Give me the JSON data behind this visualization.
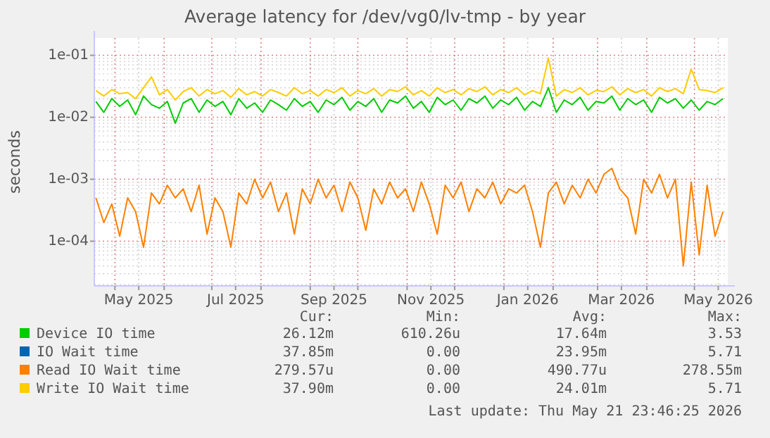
{
  "chart_data": {
    "type": "line",
    "title": "Average latency for /dev/vg0/lv-tmp - by year",
    "ylabel": "seconds",
    "log": "y",
    "grid": true,
    "legend": "bottom",
    "marker": "none",
    "line_style": "solid",
    "xlim": [
      "2025-04-18",
      "2026-05-22"
    ],
    "ylim": [
      1.9e-05,
      0.19
    ],
    "yticks": [
      {
        "value": 0.0001,
        "label": "1e-04"
      },
      {
        "value": 0.001,
        "label": "1e-03"
      },
      {
        "value": 0.01,
        "label": "1e-02"
      },
      {
        "value": 0.1,
        "label": "1e-01"
      }
    ],
    "xticks": [
      {
        "value": "2025-05-01",
        "label": null
      },
      {
        "value": "2025-05-16",
        "label": "May 2025"
      },
      {
        "value": "2025-06-01",
        "label": null
      },
      {
        "value": "2025-07-01",
        "label": null
      },
      {
        "value": "2025-07-16",
        "label": "Jul 2025"
      },
      {
        "value": "2025-08-01",
        "label": null
      },
      {
        "value": "2025-09-01",
        "label": null
      },
      {
        "value": "2025-09-16",
        "label": "Sep 2025"
      },
      {
        "value": "2025-10-01",
        "label": null
      },
      {
        "value": "2025-11-01",
        "label": null
      },
      {
        "value": "2025-11-16",
        "label": "Nov 2025"
      },
      {
        "value": "2025-12-01",
        "label": null
      },
      {
        "value": "2026-01-01",
        "label": null
      },
      {
        "value": "2026-01-16",
        "label": "Jan 2026"
      },
      {
        "value": "2026-02-01",
        "label": null
      },
      {
        "value": "2026-03-01",
        "label": null
      },
      {
        "value": "2026-03-16",
        "label": "Mar 2026"
      },
      {
        "value": "2026-04-01",
        "label": null
      },
      {
        "value": "2026-05-01",
        "label": null
      },
      {
        "value": "2026-05-16",
        "label": "May 2026"
      }
    ],
    "x": [
      "2025-04-19",
      "2025-04-24",
      "2025-04-29",
      "2025-05-04",
      "2025-05-09",
      "2025-05-14",
      "2025-05-19",
      "2025-05-24",
      "2025-05-29",
      "2025-06-03",
      "2025-06-08",
      "2025-06-13",
      "2025-06-18",
      "2025-06-23",
      "2025-06-28",
      "2025-07-03",
      "2025-07-08",
      "2025-07-13",
      "2025-07-18",
      "2025-07-23",
      "2025-07-28",
      "2025-08-02",
      "2025-08-07",
      "2025-08-12",
      "2025-08-17",
      "2025-08-22",
      "2025-08-27",
      "2025-09-01",
      "2025-09-06",
      "2025-09-11",
      "2025-09-16",
      "2025-09-21",
      "2025-09-26",
      "2025-10-01",
      "2025-10-06",
      "2025-10-11",
      "2025-10-16",
      "2025-10-21",
      "2025-10-26",
      "2025-10-31",
      "2025-11-05",
      "2025-11-10",
      "2025-11-15",
      "2025-11-20",
      "2025-11-25",
      "2025-11-30",
      "2025-12-05",
      "2025-12-10",
      "2025-12-15",
      "2025-12-20",
      "2025-12-25",
      "2025-12-30",
      "2026-01-04",
      "2026-01-09",
      "2026-01-14",
      "2026-01-19",
      "2026-01-24",
      "2026-01-29",
      "2026-02-03",
      "2026-02-08",
      "2026-02-13",
      "2026-02-18",
      "2026-02-23",
      "2026-02-28",
      "2026-03-05",
      "2026-03-10",
      "2026-03-15",
      "2026-03-20",
      "2026-03-25",
      "2026-03-30",
      "2026-04-04",
      "2026-04-09",
      "2026-04-14",
      "2026-04-19",
      "2026-04-24",
      "2026-04-29",
      "2026-05-04",
      "2026-05-09",
      "2026-05-14",
      "2026-05-19"
    ],
    "series": [
      {
        "name": "Device IO time",
        "color": "#00cc00",
        "values": [
          0.018,
          0.012,
          0.02,
          0.015,
          0.019,
          0.011,
          0.022,
          0.016,
          0.014,
          0.018,
          0.008,
          0.017,
          0.02,
          0.012,
          0.019,
          0.015,
          0.018,
          0.011,
          0.02,
          0.014,
          0.017,
          0.012,
          0.019,
          0.016,
          0.013,
          0.02,
          0.015,
          0.018,
          0.012,
          0.019,
          0.016,
          0.021,
          0.013,
          0.018,
          0.015,
          0.02,
          0.012,
          0.019,
          0.017,
          0.022,
          0.014,
          0.018,
          0.012,
          0.021,
          0.016,
          0.019,
          0.013,
          0.02,
          0.017,
          0.022,
          0.014,
          0.019,
          0.016,
          0.021,
          0.013,
          0.018,
          0.015,
          0.03,
          0.012,
          0.019,
          0.016,
          0.021,
          0.013,
          0.018,
          0.017,
          0.022,
          0.013,
          0.02,
          0.016,
          0.019,
          0.012,
          0.021,
          0.017,
          0.02,
          0.014,
          0.019,
          0.013,
          0.018,
          0.016,
          0.02
        ]
      },
      {
        "name": "IO Wait time",
        "color": "#0066b3",
        "values": [
          null,
          null,
          null,
          null,
          null,
          null,
          null,
          null,
          null,
          null,
          null,
          null,
          null,
          null,
          null,
          null,
          null,
          null,
          null,
          null,
          null,
          null,
          null,
          null,
          null,
          null,
          null,
          null,
          null,
          null,
          null,
          null,
          null,
          null,
          null,
          null,
          null,
          null,
          null,
          null,
          null,
          null,
          null,
          null,
          null,
          null,
          null,
          null,
          null,
          null,
          null,
          null,
          null,
          null,
          null,
          null,
          null,
          null,
          null,
          null,
          null,
          null,
          null,
          null,
          null,
          null,
          null,
          null,
          null,
          null,
          null,
          null,
          null,
          null,
          null,
          null,
          null,
          null,
          null,
          null
        ]
      },
      {
        "name": "Read IO Wait time",
        "color": "#ff8000",
        "values": [
          0.0005,
          0.0002,
          0.0004,
          0.00012,
          0.0005,
          0.0003,
          8e-05,
          0.0006,
          0.0004,
          0.0008,
          0.0005,
          0.0007,
          0.0003,
          0.0008,
          0.00013,
          0.0005,
          0.0003,
          8e-05,
          0.0006,
          0.0004,
          0.001,
          0.0005,
          0.0009,
          0.0003,
          0.0006,
          0.00013,
          0.0007,
          0.0004,
          0.001,
          0.0005,
          0.0008,
          0.0003,
          0.0009,
          0.0005,
          0.00015,
          0.0007,
          0.0004,
          0.0009,
          0.0005,
          0.0007,
          0.0003,
          0.0009,
          0.0004,
          0.00013,
          0.0008,
          0.0005,
          0.0009,
          0.0003,
          0.0007,
          0.0005,
          0.0009,
          0.0004,
          0.0007,
          0.0006,
          0.0008,
          0.0003,
          8e-05,
          0.0006,
          0.0009,
          0.0004,
          0.0008,
          0.0005,
          0.001,
          0.0006,
          0.0012,
          0.0015,
          0.0007,
          0.0005,
          0.00013,
          0.001,
          0.0006,
          0.0012,
          0.0005,
          0.001,
          4e-05,
          0.0009,
          6e-05,
          0.0008,
          0.00012,
          0.0003
        ]
      },
      {
        "name": "Write IO Wait time",
        "color": "#ffcc00",
        "values": [
          0.027,
          0.022,
          0.028,
          0.024,
          0.025,
          0.02,
          0.03,
          0.045,
          0.023,
          0.028,
          0.019,
          0.026,
          0.03,
          0.022,
          0.028,
          0.024,
          0.027,
          0.021,
          0.029,
          0.023,
          0.026,
          0.022,
          0.028,
          0.025,
          0.022,
          0.03,
          0.024,
          0.027,
          0.022,
          0.028,
          0.025,
          0.03,
          0.022,
          0.027,
          0.024,
          0.029,
          0.022,
          0.028,
          0.026,
          0.031,
          0.023,
          0.027,
          0.022,
          0.03,
          0.025,
          0.028,
          0.023,
          0.029,
          0.026,
          0.031,
          0.023,
          0.028,
          0.025,
          0.03,
          0.023,
          0.027,
          0.024,
          0.09,
          0.022,
          0.028,
          0.025,
          0.03,
          0.023,
          0.027,
          0.026,
          0.031,
          0.023,
          0.029,
          0.025,
          0.028,
          0.022,
          0.03,
          0.026,
          0.029,
          0.024,
          0.06,
          0.028,
          0.027,
          0.025,
          0.03
        ]
      }
    ],
    "annotations": [
      "Cur:",
      "Min:",
      "Avg:",
      "Max:",
      "26.12m",
      "610.26u",
      "17.64m",
      "3.53",
      "37.85m",
      "0.00",
      "23.95m",
      "5.71",
      "279.57u",
      "0.00",
      "490.77u",
      "278.55m",
      "37.90m",
      "0.00",
      "24.01m",
      "5.71",
      "Last update: Thu May 21 23:46:25 2026"
    ]
  }
}
